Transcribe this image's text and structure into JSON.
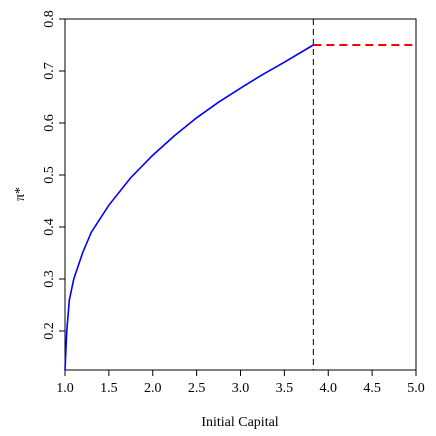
{
  "chart_data": {
    "type": "line",
    "xlabel": "Initial Capital",
    "ylabel": "π*",
    "xlim": [
      1,
      5
    ],
    "ylim": [
      0.125,
      0.8
    ],
    "xticks": [
      {
        "value": 1,
        "label": "1.0"
      },
      1.5,
      {
        "value": 2,
        "label": "2.0"
      },
      2.5,
      {
        "value": 3,
        "label": "3.0"
      },
      3.5,
      {
        "value": 4,
        "label": "4.0"
      },
      4.5,
      {
        "value": 5,
        "label": "5.0"
      }
    ],
    "yticks": [
      0.2,
      0.3,
      0.4,
      0.5,
      0.6,
      0.7,
      0.8
    ],
    "vline": {
      "x": 3.83,
      "color": "#000000",
      "linestyle": "dashed"
    },
    "series": [
      {
        "color": "#0000ff",
        "linestyle": "solid",
        "x": [
          1.0,
          1.02,
          1.05,
          1.1,
          1.2,
          1.3,
          1.5,
          1.75,
          2.0,
          2.25,
          2.5,
          2.75,
          3.0,
          3.25,
          3.5,
          3.83
        ],
        "values": [
          0.125,
          0.2,
          0.26,
          0.3,
          0.35,
          0.39,
          0.442,
          0.495,
          0.538,
          0.576,
          0.61,
          0.64,
          0.667,
          0.693,
          0.717,
          0.75
        ]
      },
      {
        "color": "#ff0000",
        "linestyle": "dashed",
        "x": [
          3.83,
          5.0
        ],
        "values": [
          0.75,
          0.75
        ]
      }
    ]
  }
}
